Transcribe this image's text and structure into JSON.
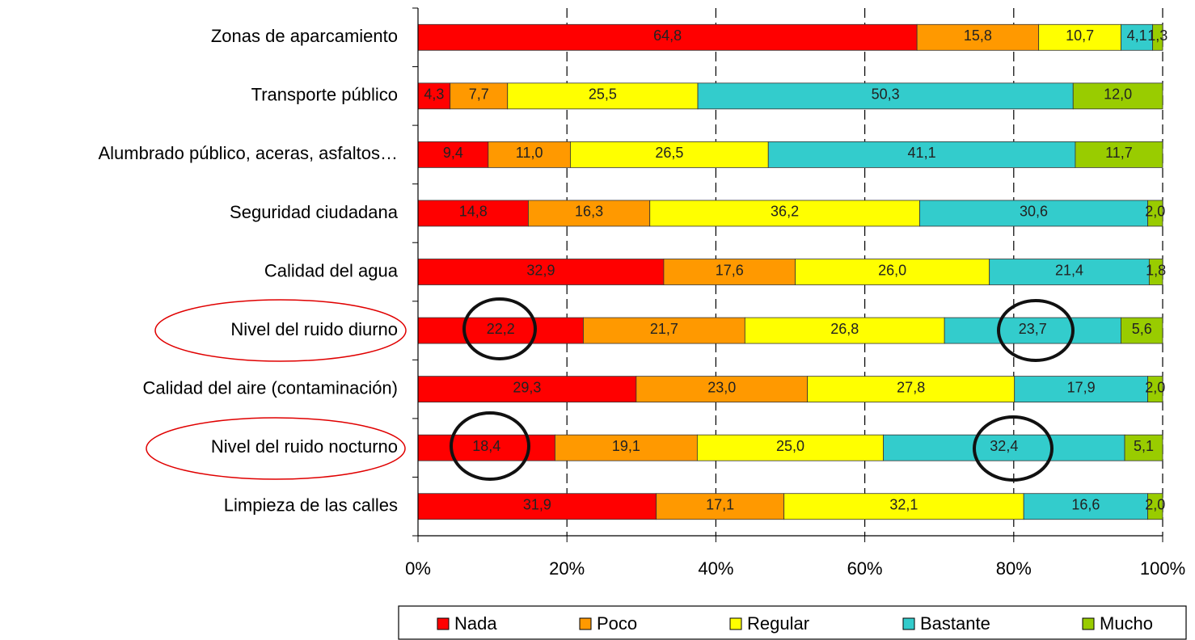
{
  "chart_data": {
    "type": "bar",
    "orientation": "horizontal",
    "stacked": "percent",
    "categories": [
      "Zonas de aparcamiento",
      "Transporte público",
      "Alumbrado público, aceras, asfaltos…",
      "Seguridad ciudadana",
      "Calidad del agua",
      "Nivel del ruido diurno",
      "Calidad del aire (contaminación)",
      "Nivel del ruido nocturno",
      "Limpieza de las calles"
    ],
    "series": [
      {
        "name": "Nada",
        "color": "#ff0000",
        "values": [
          64.8,
          4.3,
          9.4,
          14.8,
          32.9,
          22.2,
          29.3,
          18.4,
          31.9
        ],
        "value_labels": [
          "64,8",
          "4,3",
          "9,4",
          "14,8",
          "32,9",
          "22,2",
          "29,3",
          "18,4",
          "31,9"
        ]
      },
      {
        "name": "Poco",
        "color": "#ff9900",
        "values": [
          15.8,
          7.7,
          11.0,
          16.3,
          17.6,
          21.7,
          23.0,
          19.1,
          17.1
        ],
        "value_labels": [
          "15,8",
          "7,7",
          "11,0",
          "16,3",
          "17,6",
          "21,7",
          "23,0",
          "19,1",
          "17,1"
        ]
      },
      {
        "name": "Regular",
        "color": "#ffff00",
        "values": [
          10.7,
          25.5,
          26.5,
          36.2,
          26.0,
          26.8,
          27.8,
          25.0,
          32.1
        ],
        "value_labels": [
          "10,7",
          "25,5",
          "26,5",
          "36,2",
          "26,0",
          "26,8",
          "27,8",
          "25,0",
          "32,1"
        ]
      },
      {
        "name": "Bastante",
        "color": "#33cccc",
        "values": [
          4.1,
          50.3,
          41.1,
          30.6,
          21.4,
          23.7,
          17.9,
          32.4,
          16.6
        ],
        "value_labels": [
          "4,1",
          "50,3",
          "41,1",
          "30,6",
          "21,4",
          "23,7",
          "17,9",
          "32,4",
          "16,6"
        ]
      },
      {
        "name": "Mucho",
        "color": "#99cc00",
        "values": [
          1.3,
          12.0,
          11.7,
          2.0,
          1.8,
          5.6,
          2.0,
          5.1,
          2.0
        ],
        "value_labels": [
          "1,3",
          "12,0",
          "11,7",
          "2,0",
          "1,8",
          "5,6",
          "2,0",
          "5,1",
          "2,0"
        ]
      }
    ],
    "xlim": [
      0,
      100
    ],
    "xticks": [
      {
        "value": 0,
        "label": "0%"
      },
      {
        "value": 20,
        "label": "20%"
      },
      {
        "value": 40,
        "label": "40%"
      },
      {
        "value": 60,
        "label": "60%"
      },
      {
        "value": 80,
        "label": "80%"
      },
      {
        "value": 100,
        "label": "100%"
      }
    ],
    "grid": true,
    "legend": "bottom"
  }
}
